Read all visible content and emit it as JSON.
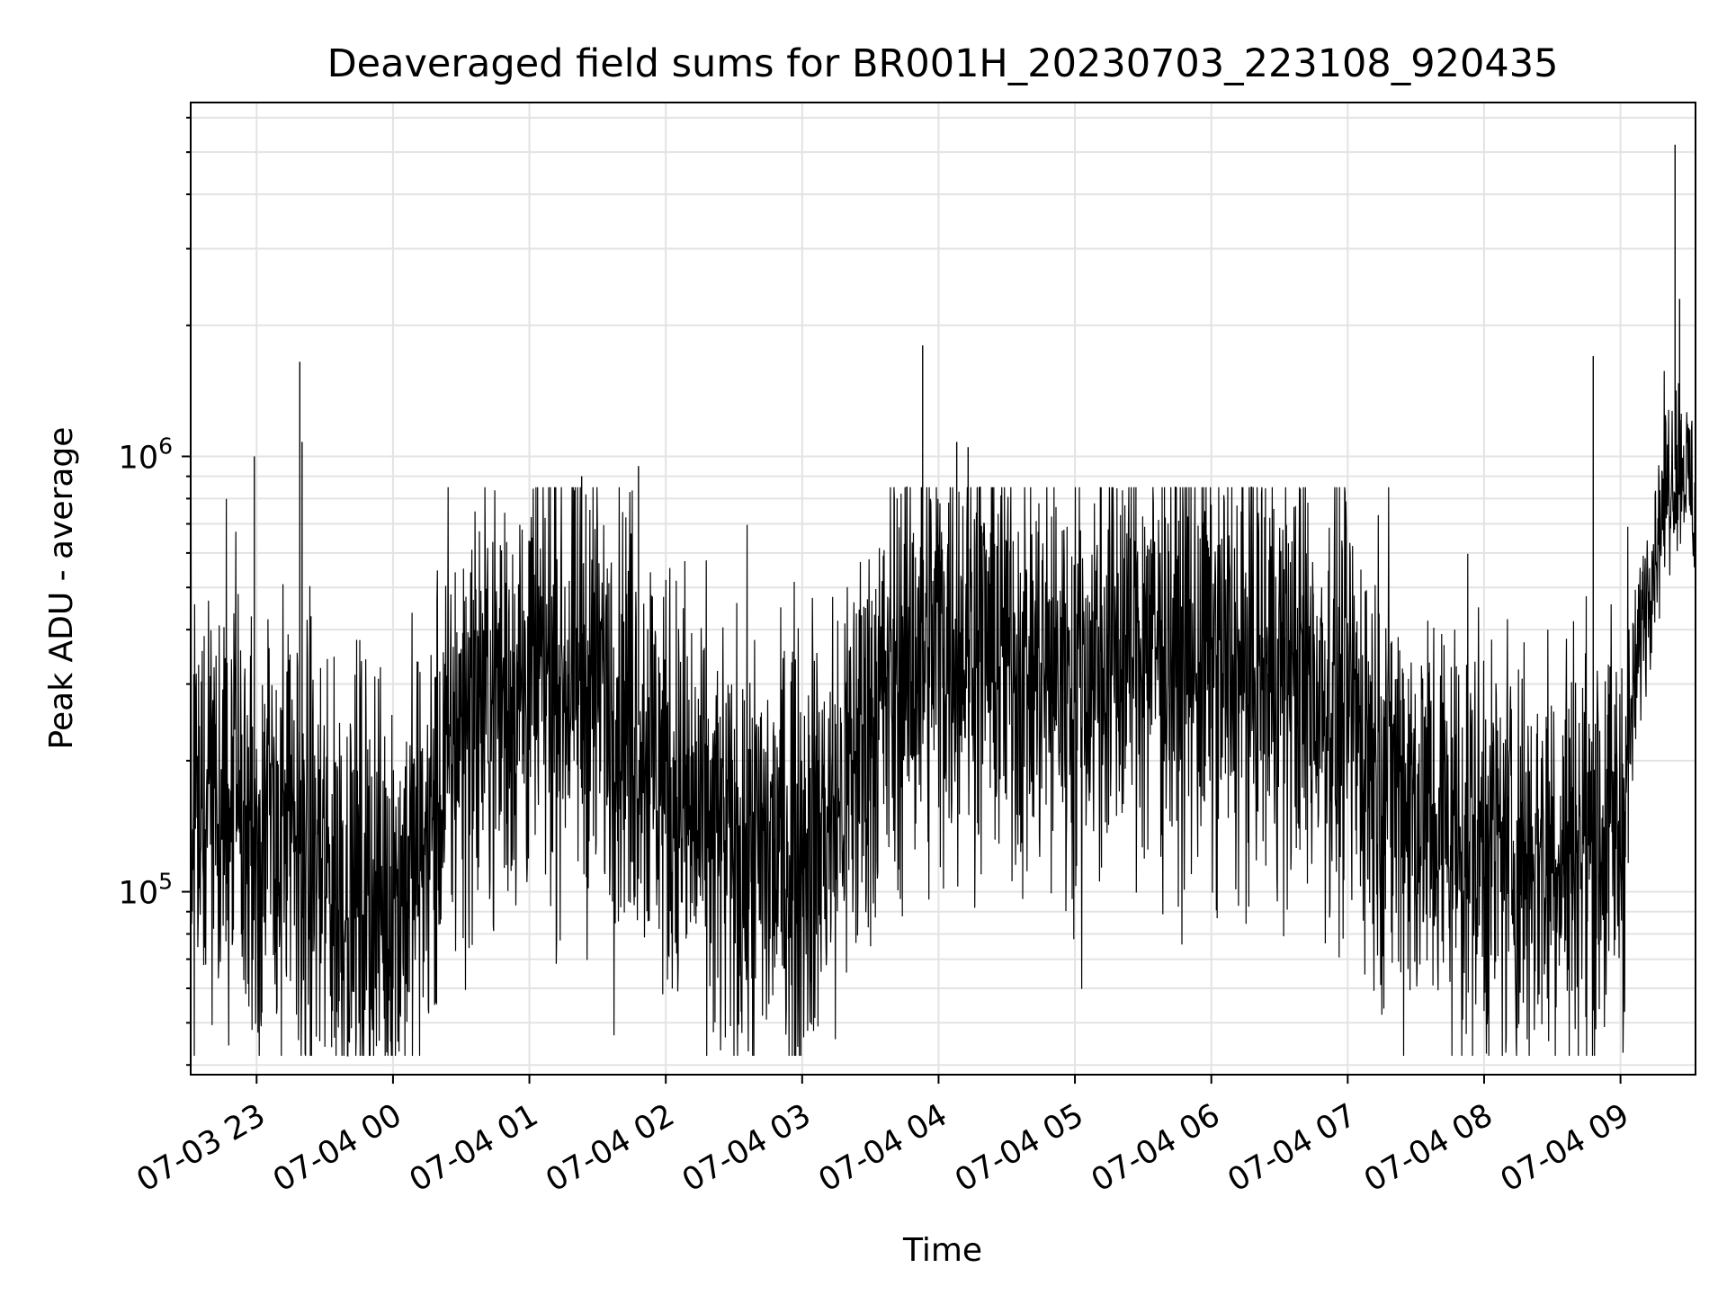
{
  "chart_data": {
    "type": "line",
    "title": "Deaveraged field sums for BR001H_20230703_223108_920435",
    "xlabel": "Time",
    "ylabel": "Peak ADU - average",
    "x_range": [
      "07-03 22:31",
      "07-04 09:33"
    ],
    "yscale": "log",
    "ylim": [
      38000,
      6500000
    ],
    "grid": true,
    "line_color": "#000000",
    "x_tick_labels": [
      "07-03 23",
      "07-04 00",
      "07-04 01",
      "07-04 02",
      "07-04 03",
      "07-04 04",
      "07-04 05",
      "07-04 06",
      "07-04 07",
      "07-04 08",
      "07-04 09"
    ],
    "y_major_ticks": [
      {
        "value": 100000,
        "base": "10",
        "exp": "5"
      },
      {
        "value": 1000000,
        "base": "10",
        "exp": "6"
      }
    ],
    "series": [
      {
        "x": [
          "07-03 22:31",
          "07-03 22:45",
          "07-03 23:00",
          "07-03 23:15",
          "07-03 23:30",
          "07-03 23:45",
          "07-04 00:00",
          "07-04 00:15",
          "07-04 00:30",
          "07-04 00:45",
          "07-04 01:00",
          "07-04 01:15",
          "07-04 01:30",
          "07-04 01:45",
          "07-04 02:00",
          "07-04 02:15",
          "07-04 02:30",
          "07-04 02:45",
          "07-04 03:00",
          "07-04 03:15",
          "07-04 03:30",
          "07-04 03:45",
          "07-04 04:00",
          "07-04 04:15",
          "07-04 04:30",
          "07-04 04:45",
          "07-04 05:00",
          "07-04 05:15",
          "07-04 05:30",
          "07-04 05:45",
          "07-04 06:00",
          "07-04 06:15",
          "07-04 06:30",
          "07-04 06:45",
          "07-04 07:00",
          "07-04 07:15",
          "07-04 07:30",
          "07-04 07:45",
          "07-04 08:00",
          "07-04 08:15",
          "07-04 08:30",
          "07-04 08:45",
          "07-04 09:00",
          "07-04 09:10",
          "07-04 09:20",
          "07-04 09:27",
          "07-04 09:33"
        ],
        "y": [
          200000,
          150000,
          140000,
          130000,
          110000,
          100000,
          95000,
          130000,
          250000,
          280000,
          300000,
          320000,
          300000,
          260000,
          180000,
          140000,
          120000,
          120000,
          130000,
          150000,
          250000,
          330000,
          380000,
          400000,
          350000,
          320000,
          300000,
          350000,
          380000,
          360000,
          330000,
          320000,
          330000,
          300000,
          260000,
          200000,
          160000,
          140000,
          130000,
          120000,
          130000,
          130000,
          140000,
          450000,
          850000,
          1000000,
          750000
        ],
        "spikes": [
          {
            "x": "07-03 22:59",
            "y": 1000000
          },
          {
            "x": "07-03 23:19",
            "y": 1650000
          },
          {
            "x": "07-03 23:20",
            "y": 1080000
          },
          {
            "x": "07-04 01:23",
            "y": 900000
          },
          {
            "x": "07-04 01:48",
            "y": 950000
          },
          {
            "x": "07-04 03:53",
            "y": 1800000
          },
          {
            "x": "07-04 04:08",
            "y": 1080000
          },
          {
            "x": "07-04 04:13",
            "y": 1050000
          },
          {
            "x": "07-04 08:48",
            "y": 1700000
          },
          {
            "x": "07-04 09:24",
            "y": 5200000
          },
          {
            "x": "07-04 09:26",
            "y": 2300000
          }
        ]
      }
    ]
  }
}
